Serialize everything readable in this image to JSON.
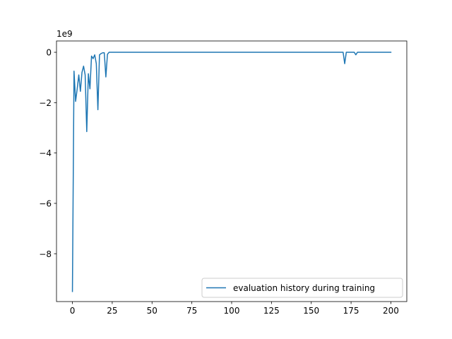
{
  "chart_data": {
    "type": "line",
    "title": "",
    "xlabel": "",
    "ylabel": "",
    "offset_label": "1e9",
    "xlim": [
      -10,
      210
    ],
    "ylim": [
      -9.9,
      0.45
    ],
    "xticks": [
      0,
      25,
      50,
      75,
      100,
      125,
      150,
      175,
      200
    ],
    "yticks": [
      0,
      -2,
      -4,
      -6,
      -8
    ],
    "grid": false,
    "legend_position": "lower right",
    "series": [
      {
        "name": "evaluation history during training",
        "color": "#1f77b4",
        "x": [
          0,
          1,
          2,
          3,
          4,
          5,
          6,
          7,
          8,
          9,
          10,
          11,
          12,
          13,
          14,
          15,
          16,
          17,
          18,
          19,
          20,
          21,
          22,
          23,
          25,
          50,
          100,
          150,
          170,
          171,
          172,
          176,
          177,
          178,
          179,
          180,
          190,
          200
        ],
        "y": [
          -9.5,
          -0.75,
          -1.95,
          -1.45,
          -0.9,
          -1.55,
          -0.8,
          -0.55,
          -0.9,
          -3.15,
          -0.85,
          -1.45,
          -0.15,
          -0.25,
          -0.1,
          -0.45,
          -2.28,
          -0.1,
          -0.05,
          -0.02,
          -0.02,
          -0.98,
          -0.08,
          0,
          0,
          0,
          0,
          0,
          0,
          -0.45,
          0,
          0,
          0,
          -0.1,
          0,
          0,
          0,
          0
        ]
      }
    ]
  }
}
